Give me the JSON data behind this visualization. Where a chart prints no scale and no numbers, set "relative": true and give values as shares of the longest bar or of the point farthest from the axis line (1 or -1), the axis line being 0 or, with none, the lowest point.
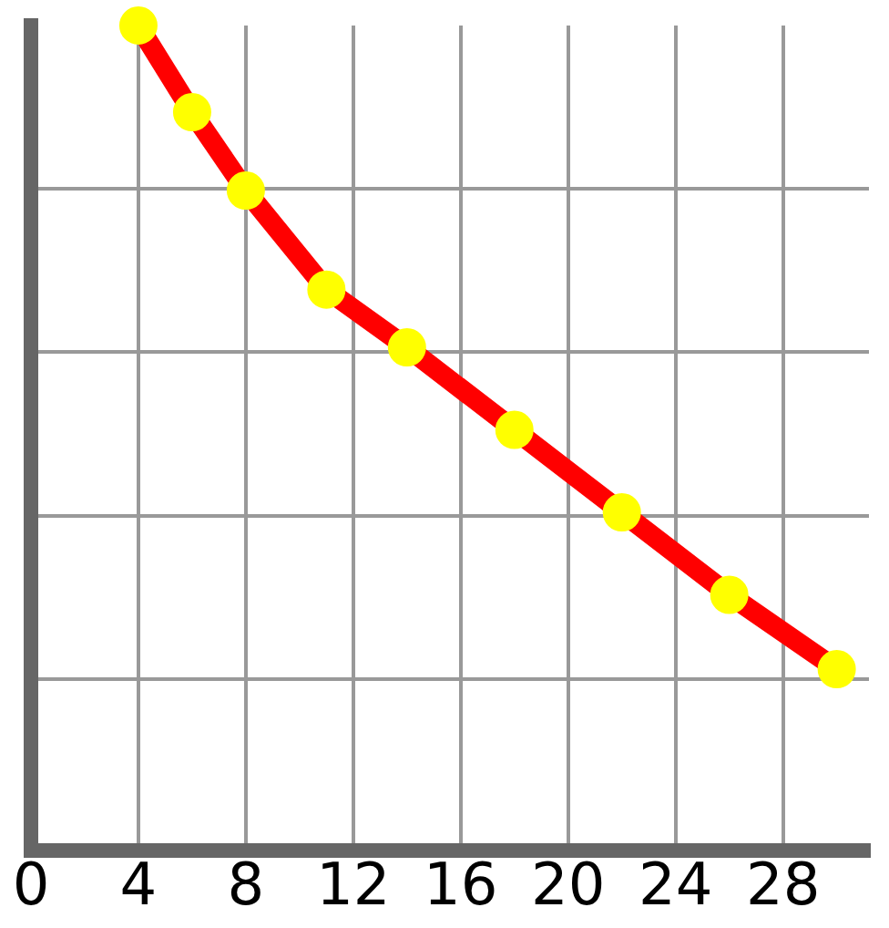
{
  "chart_data": {
    "type": "line",
    "relative": true,
    "x": [
      4,
      6,
      8,
      11,
      14,
      18,
      22,
      26,
      30
    ],
    "series": [
      {
        "color": "#ff0000",
        "values": [
          1,
          0.895,
          0.8,
          0.68,
          0.61,
          0.51,
          0.41,
          0.31,
          0.22
        ]
      }
    ],
    "xlim": [
      0,
      31.2
    ],
    "xticks": [
      0,
      4,
      8,
      12,
      16,
      20,
      24,
      28
    ],
    "grid": true,
    "marker": "circle",
    "legend": false
  }
}
